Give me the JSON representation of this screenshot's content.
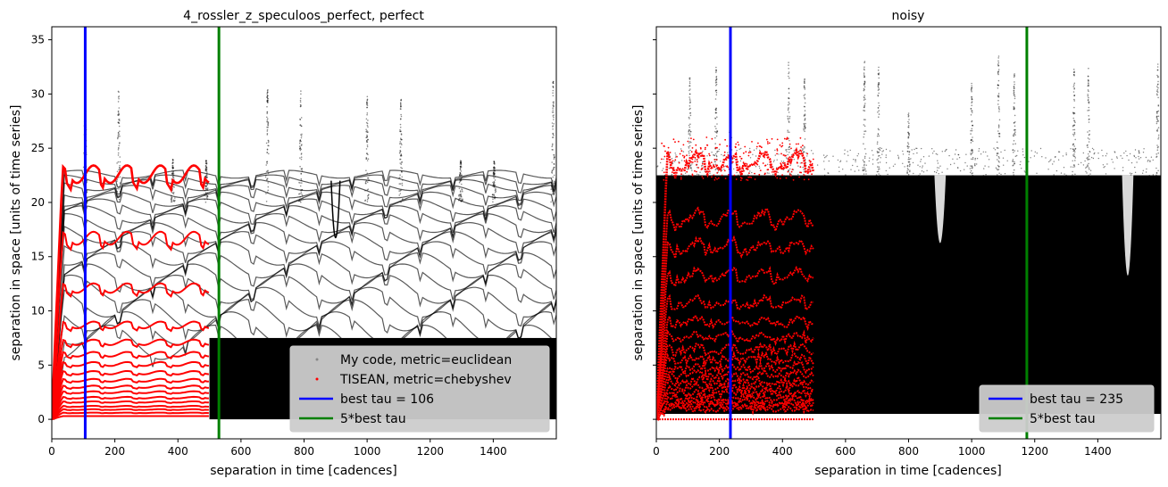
{
  "chart_data": [
    {
      "type": "scatter",
      "title": "4_rossler_z_speculoos_perfect, perfect",
      "xlabel": "separation in time [cadences]",
      "ylabel": "separation in space [units of time series]",
      "xlim": [
        0,
        1600
      ],
      "ylim": [
        -1.8,
        36.2
      ],
      "xticks": [
        0,
        200,
        400,
        600,
        800,
        1000,
        1200,
        1400
      ],
      "yticks": [
        0,
        5,
        10,
        15,
        20,
        25,
        30,
        35
      ],
      "show_ytick_labels": true,
      "grid": false,
      "legend_position": "lower-right",
      "series": [
        {
          "name": "My code, metric=euclidean",
          "kind": "points",
          "color": "#000000",
          "x_range": [
            0,
            1600
          ],
          "envelope_top_levels": [
            22.6,
            22.1,
            21.6,
            21.0,
            20.3,
            19.6,
            18.9,
            18.1,
            17.2,
            16.3,
            15.3,
            14.2,
            13.1,
            12.0,
            10.8,
            9.6,
            8.4,
            7.1
          ],
          "peaks": [
            {
              "x": 106,
              "y": 30.6
            },
            {
              "x": 212,
              "y": 30.5
            },
            {
              "x": 384,
              "y": 24.0
            },
            {
              "x": 490,
              "y": 24.0
            },
            {
              "x": 684,
              "y": 30.5
            },
            {
              "x": 790,
              "y": 30.5
            },
            {
              "x": 1000,
              "y": 29.8
            },
            {
              "x": 1107,
              "y": 29.8
            },
            {
              "x": 1297,
              "y": 24.0
            },
            {
              "x": 1403,
              "y": 23.8
            },
            {
              "x": 1590,
              "y": 31.2
            }
          ],
          "dips": [
            {
              "x": 900,
              "y": 15.5
            }
          ]
        },
        {
          "name": "TISEAN, metric=chebyshev",
          "kind": "points",
          "color": "#ff0000",
          "x_range": [
            0,
            500
          ],
          "levels": [
            22.6,
            16.7,
            12.1,
            8.7,
            7.1,
            6.0,
            5.1,
            4.3,
            3.6,
            3.0,
            2.5,
            2.0,
            1.6,
            1.2,
            0.9,
            0.6,
            0.3
          ]
        },
        {
          "name": "best tau = 106",
          "kind": "vline",
          "x": 106,
          "color": "#0000ff"
        },
        {
          "name": "5*best tau",
          "kind": "vline",
          "x": 530,
          "color": "#008000"
        }
      ]
    },
    {
      "type": "scatter",
      "title": "noisy",
      "xlabel": "separation in time [cadences]",
      "ylabel": "separation in space [units of time series]",
      "xlim": [
        0,
        1600
      ],
      "ylim": [
        -1.8,
        36.2
      ],
      "xticks": [
        0,
        200,
        400,
        600,
        800,
        1000,
        1200,
        1400
      ],
      "yticks": [
        0,
        5,
        10,
        15,
        20,
        25,
        30,
        35
      ],
      "show_ytick_labels": false,
      "grid": false,
      "legend_position": "lower-right",
      "series": [
        {
          "name": "",
          "kind": "points",
          "color": "#000000",
          "x_range": [
            0,
            1600
          ],
          "band": [
            0.5,
            22.5
          ],
          "peaks": [
            {
              "x": 106,
              "y": 31.5
            },
            {
              "x": 190,
              "y": 32.5
            },
            {
              "x": 235,
              "y": 31.5
            },
            {
              "x": 420,
              "y": 33.0
            },
            {
              "x": 470,
              "y": 31.5
            },
            {
              "x": 660,
              "y": 33.0
            },
            {
              "x": 705,
              "y": 32.5
            },
            {
              "x": 800,
              "y": 28.5
            },
            {
              "x": 1000,
              "y": 31.0
            },
            {
              "x": 1085,
              "y": 34.0
            },
            {
              "x": 1135,
              "y": 32.0
            },
            {
              "x": 1325,
              "y": 32.5
            },
            {
              "x": 1370,
              "y": 32.5
            },
            {
              "x": 1590,
              "y": 33.0
            }
          ],
          "dips": [
            {
              "x": 900,
              "y": 16.0
            },
            {
              "x": 1495,
              "y": 10.0
            }
          ]
        },
        {
          "name": "",
          "kind": "points",
          "color": "#ff0000",
          "x_range": [
            0,
            500
          ],
          "levels": [
            23.8,
            18.6,
            16.0,
            13.3,
            10.8,
            9.0,
            7.6,
            6.5,
            5.6,
            4.8,
            4.1,
            3.5,
            2.9,
            2.4,
            2.0,
            1.6,
            1.3,
            1.0,
            0.0
          ]
        },
        {
          "name": "best tau = 235",
          "kind": "vline",
          "x": 235,
          "color": "#0000ff"
        },
        {
          "name": "5*best tau",
          "kind": "vline",
          "x": 1175,
          "color": "#008000"
        }
      ]
    }
  ]
}
